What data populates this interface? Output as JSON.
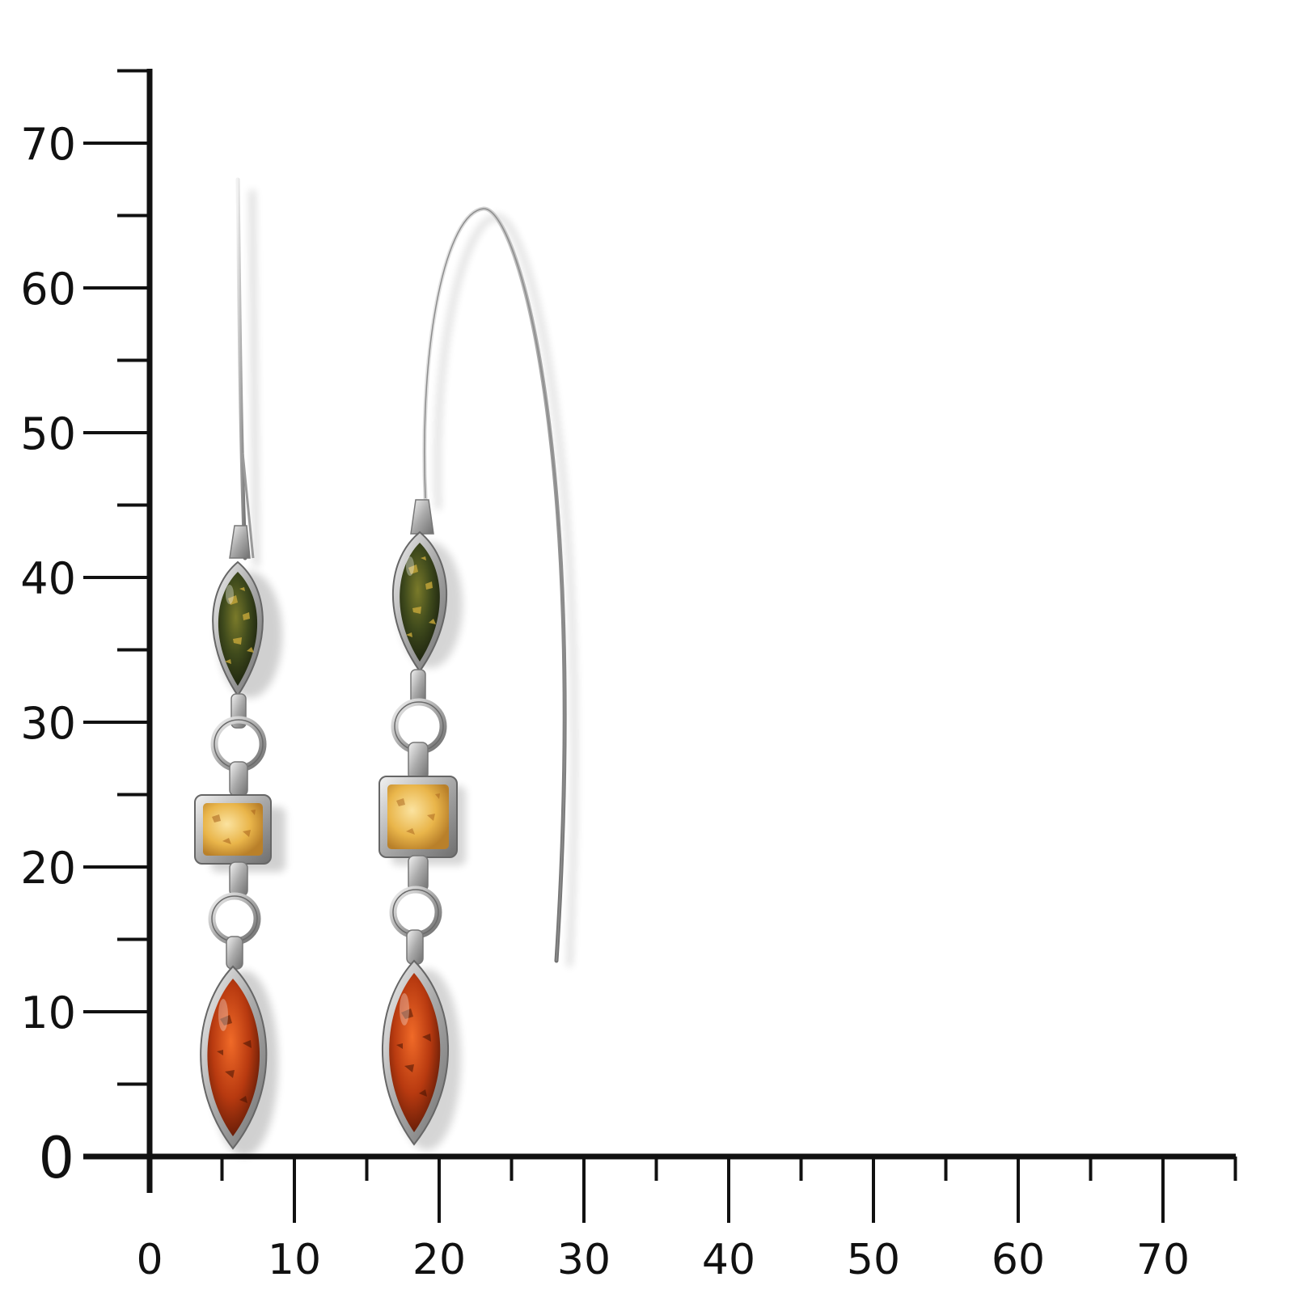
{
  "scale": {
    "x_ticks": [
      "0",
      "10",
      "20",
      "30",
      "40",
      "50",
      "60",
      "70"
    ],
    "y_ticks": [
      "0",
      "10",
      "20",
      "30",
      "40",
      "50",
      "60",
      "70"
    ],
    "axis_color": "#111111"
  },
  "photo": {
    "subject": [
      "earring-left-straight-wire",
      "earring-right-hook-wire"
    ],
    "stone_colors": {
      "green_amber": "#3f4a1c",
      "honey_amber": "#e9b54a",
      "cognac_amber": "#b83a10",
      "silver": "#bfbfbf"
    }
  }
}
